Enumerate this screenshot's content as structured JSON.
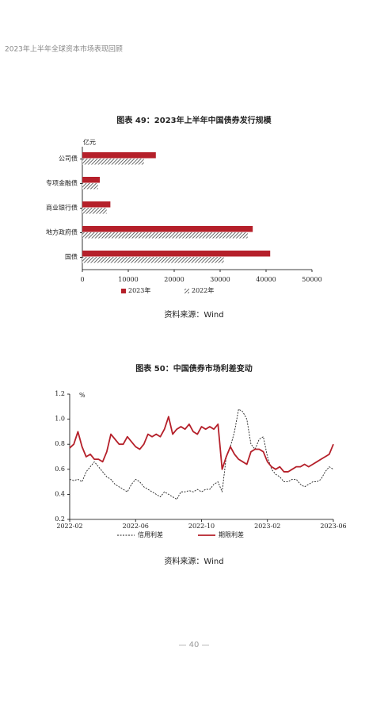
{
  "header": {
    "title": "2023年上半年全球资本市场表现回顾"
  },
  "chart_data": [
    {
      "type": "bar",
      "orientation": "horizontal",
      "title": "图表 49：2023年上半年中国债券发行规模",
      "unit": "亿元",
      "categories": [
        "公司债",
        "专项金融债",
        "商业银行债",
        "地方政府债",
        "国债"
      ],
      "series": [
        {
          "name": "2023年",
          "color": "#b5202a",
          "fill": "solid",
          "values": [
            16000,
            3800,
            6100,
            37100,
            40900
          ]
        },
        {
          "name": "2022年",
          "color": "#444444",
          "fill": "hatch",
          "values": [
            13400,
            3400,
            5300,
            36000,
            30800
          ]
        }
      ],
      "xlim": [
        0,
        50000
      ],
      "xticks": [
        0,
        10000,
        20000,
        30000,
        40000,
        50000
      ],
      "source": "资料来源：Wind"
    },
    {
      "type": "line",
      "title": "图表 50：中国债券市场利差变动",
      "unit": "%",
      "categories": [
        "2022-02",
        null,
        null,
        null,
        null,
        null,
        null,
        null,
        null,
        null,
        null,
        null,
        null,
        null,
        null,
        null,
        "2022-06",
        null,
        null,
        null,
        null,
        null,
        null,
        null,
        null,
        null,
        null,
        null,
        null,
        null,
        null,
        null,
        "2022-10",
        null,
        null,
        null,
        null,
        null,
        null,
        null,
        null,
        null,
        null,
        null,
        null,
        null,
        null,
        null,
        "2023-02",
        null,
        null,
        null,
        null,
        null,
        null,
        null,
        null,
        null,
        null,
        null,
        null,
        null,
        null,
        null,
        "2023-06"
      ],
      "series": [
        {
          "name": "信用利差",
          "color": "#222222",
          "dash": true,
          "values": [
            0.52,
            0.51,
            0.52,
            0.5,
            0.58,
            0.62,
            0.66,
            0.62,
            0.58,
            0.54,
            0.52,
            0.48,
            0.46,
            0.44,
            0.42,
            0.48,
            0.52,
            0.5,
            0.46,
            0.44,
            0.42,
            0.4,
            0.38,
            0.42,
            0.4,
            0.38,
            0.36,
            0.42,
            0.42,
            0.43,
            0.42,
            0.44,
            0.42,
            0.44,
            0.44,
            0.48,
            0.5,
            0.42,
            0.7,
            0.78,
            0.9,
            1.08,
            1.06,
            1.0,
            0.8,
            0.76,
            0.84,
            0.86,
            0.7,
            0.6,
            0.56,
            0.54,
            0.5,
            0.5,
            0.52,
            0.52,
            0.48,
            0.46,
            0.48,
            0.5,
            0.5,
            0.52,
            0.58,
            0.62,
            0.6
          ]
        },
        {
          "name": "期限利差",
          "color": "#b5202a",
          "dash": false,
          "values": [
            0.77,
            0.8,
            0.9,
            0.78,
            0.7,
            0.72,
            0.68,
            0.68,
            0.66,
            0.74,
            0.88,
            0.84,
            0.8,
            0.8,
            0.86,
            0.82,
            0.78,
            0.76,
            0.8,
            0.88,
            0.86,
            0.88,
            0.86,
            0.92,
            1.02,
            0.88,
            0.92,
            0.94,
            0.92,
            0.96,
            0.9,
            0.88,
            0.94,
            0.92,
            0.94,
            0.92,
            0.96,
            0.6,
            0.7,
            0.78,
            0.72,
            0.68,
            0.66,
            0.64,
            0.74,
            0.76,
            0.76,
            0.74,
            0.66,
            0.62,
            0.6,
            0.62,
            0.58,
            0.58,
            0.6,
            0.62,
            0.62,
            0.64,
            0.62,
            0.64,
            0.66,
            0.68,
            0.7,
            0.72,
            0.8
          ]
        }
      ],
      "ylim": [
        0.2,
        1.2
      ],
      "yticks": [
        0.2,
        0.4,
        0.6,
        0.8,
        {
          "value": 1,
          "label": "1.0"
        },
        1.2
      ],
      "source": "资料来源：Wind"
    }
  ],
  "footer": {
    "page": "— 40 —"
  }
}
